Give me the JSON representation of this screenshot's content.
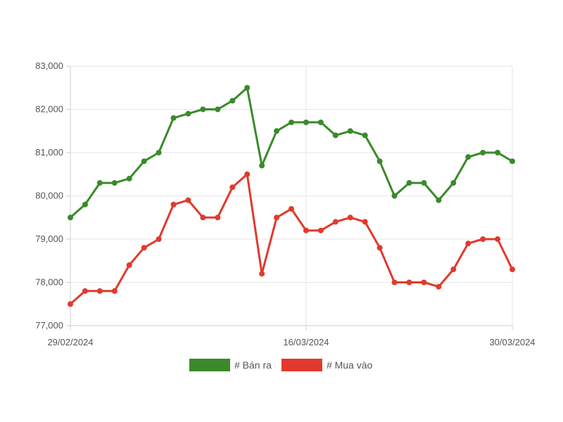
{
  "chart_data": {
    "type": "line",
    "x": [
      "29/02/2024",
      "01/03/2024",
      "02/03/2024",
      "03/03/2024",
      "04/03/2024",
      "05/03/2024",
      "06/03/2024",
      "07/03/2024",
      "08/03/2024",
      "09/03/2024",
      "10/03/2024",
      "11/03/2024",
      "12/03/2024",
      "13/03/2024",
      "14/03/2024",
      "15/03/2024",
      "16/03/2024",
      "17/03/2024",
      "18/03/2024",
      "19/03/2024",
      "20/03/2024",
      "21/03/2024",
      "22/03/2024",
      "23/03/2024",
      "24/03/2024",
      "25/03/2024",
      "26/03/2024",
      "27/03/2024",
      "28/03/2024",
      "29/03/2024",
      "30/03/2024"
    ],
    "x_tick_labels": [
      "29/02/2024",
      "16/03/2024",
      "30/03/2024"
    ],
    "x_tick_dates": [
      "29/02/2024",
      "16/03/2024",
      "30/03/2024"
    ],
    "y_ticks": [
      77000,
      78000,
      79000,
      80000,
      81000,
      82000,
      83000
    ],
    "y_tick_labels": [
      "77,000",
      "78,000",
      "79,000",
      "80,000",
      "81,000",
      "82,000",
      "83,000"
    ],
    "ylim": [
      77000,
      83000
    ],
    "grid": true,
    "legend_position": "bottom",
    "series": [
      {
        "name": "# Bán ra",
        "color": "#3a8a2a",
        "values": [
          79500,
          79800,
          80300,
          80300,
          80400,
          80800,
          81000,
          81800,
          81900,
          82000,
          82000,
          82200,
          82500,
          80700,
          81500,
          81700,
          81700,
          81700,
          81400,
          81500,
          81400,
          80800,
          80000,
          80300,
          80300,
          79900,
          80300,
          80900,
          81000,
          81000,
          80800
        ]
      },
      {
        "name": "# Mua vào",
        "color": "#e03a2e",
        "values": [
          77500,
          77800,
          77800,
          77800,
          78400,
          78800,
          79000,
          79800,
          79900,
          79500,
          79500,
          80200,
          80500,
          78200,
          79500,
          79700,
          79200,
          79200,
          79400,
          79500,
          79400,
          78800,
          78000,
          78000,
          78000,
          77900,
          78300,
          78900,
          79000,
          79000,
          78300
        ]
      }
    ]
  }
}
